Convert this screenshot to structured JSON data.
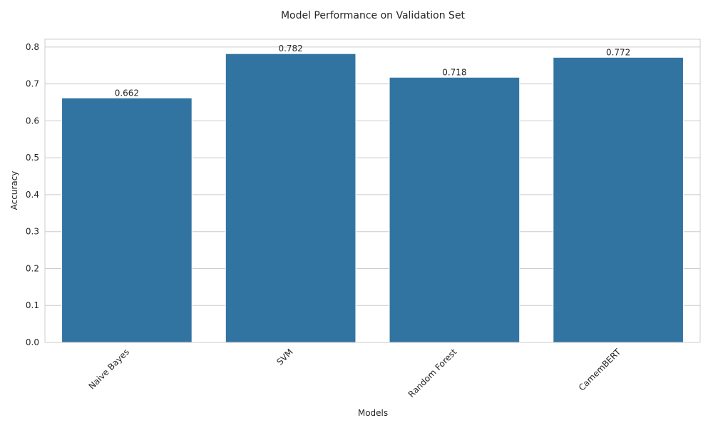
{
  "chart_data": {
    "type": "bar",
    "title": "Model Performance on Validation Set",
    "xlabel": "Models",
    "ylabel": "Accuracy",
    "categories": [
      "Naive Bayes",
      "SVM",
      "Random Forest",
      "CamemBERT"
    ],
    "values": [
      0.662,
      0.782,
      0.718,
      0.772
    ],
    "data_labels": [
      "0.662",
      "0.782",
      "0.718",
      "0.772"
    ],
    "yticks": [
      0.0,
      0.1,
      0.2,
      0.3,
      0.4,
      0.5,
      0.6,
      0.7,
      0.8
    ],
    "ytick_labels": [
      "0.0",
      "0.1",
      "0.2",
      "0.3",
      "0.4",
      "0.5",
      "0.6",
      "0.7",
      "0.8"
    ],
    "ylim": [
      0,
      0.821
    ],
    "grid": true,
    "x_tick_rotation": "45 degrees",
    "bar_color": "#3274a1",
    "grid_color": "#cccccc"
  }
}
